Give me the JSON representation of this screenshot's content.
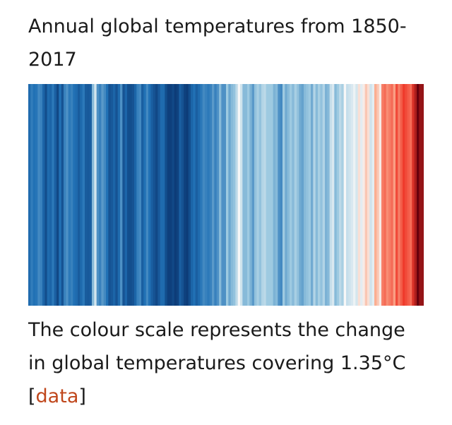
{
  "header": {
    "title": "Annual global temperatures from 1850-2017"
  },
  "caption": {
    "text": "The colour scale represents the change in global temperatures covering 1.35°C",
    "link_open": "[",
    "link_label": "data",
    "link_close": "]"
  },
  "chart_data": {
    "type": "heatmap",
    "title": "Annual global temperatures from 1850-2017",
    "x": {
      "start": 1850,
      "end": 2017
    },
    "colors": {
      "coldest": "#08306b",
      "cool": "#2171b5",
      "mild_cool": "#9ecae1",
      "neutral": "#f7f7f7",
      "mild_warm": "#fcae91",
      "warm": "#ef3b2c",
      "hottest": "#67000d"
    },
    "value_range_degC": 1.35,
    "values": [
      0.2,
      0.25,
      0.22,
      0.23,
      0.28,
      0.26,
      0.18,
      0.1,
      0.2,
      0.18,
      0.24,
      0.16,
      0.08,
      0.22,
      0.12,
      0.26,
      0.3,
      0.24,
      0.26,
      0.22,
      0.2,
      0.15,
      0.2,
      0.24,
      0.15,
      0.14,
      0.16,
      0.4,
      0.55,
      0.3,
      0.26,
      0.32,
      0.28,
      0.22,
      0.12,
      0.14,
      0.18,
      0.12,
      0.2,
      0.3,
      0.12,
      0.18,
      0.1,
      0.1,
      0.12,
      0.18,
      0.26,
      0.28,
      0.16,
      0.22,
      0.28,
      0.22,
      0.16,
      0.12,
      0.08,
      0.14,
      0.2,
      0.2,
      0.1,
      0.05,
      0.05,
      0.08,
      0.04,
      0.06,
      0.16,
      0.12,
      0.06,
      0.04,
      0.1,
      0.18,
      0.22,
      0.16,
      0.2,
      0.24,
      0.28,
      0.26,
      0.24,
      0.26,
      0.32,
      0.26,
      0.3,
      0.4,
      0.3,
      0.3,
      0.44,
      0.35,
      0.4,
      0.42,
      0.5,
      0.62,
      0.54,
      0.4,
      0.4,
      0.44,
      0.38,
      0.32,
      0.42,
      0.46,
      0.42,
      0.48,
      0.5,
      0.44,
      0.44,
      0.44,
      0.38,
      0.4,
      0.3,
      0.28,
      0.44,
      0.36,
      0.4,
      0.44,
      0.4,
      0.46,
      0.42,
      0.36,
      0.34,
      0.4,
      0.42,
      0.44,
      0.36,
      0.48,
      0.4,
      0.46,
      0.42,
      0.48,
      0.38,
      0.4,
      0.52,
      0.56,
      0.4,
      0.44,
      0.5,
      0.46,
      0.62,
      0.52,
      0.54,
      0.56,
      0.6,
      0.55,
      0.66,
      0.58,
      0.64,
      0.7,
      0.66,
      0.54,
      0.58,
      0.74,
      0.7,
      0.64,
      0.8,
      0.82,
      0.78,
      0.8,
      0.82,
      0.76,
      0.86,
      0.8,
      0.84,
      0.88,
      0.86,
      0.84,
      0.82,
      0.9,
      0.94,
      1.0,
      0.96,
      0.96
    ]
  }
}
